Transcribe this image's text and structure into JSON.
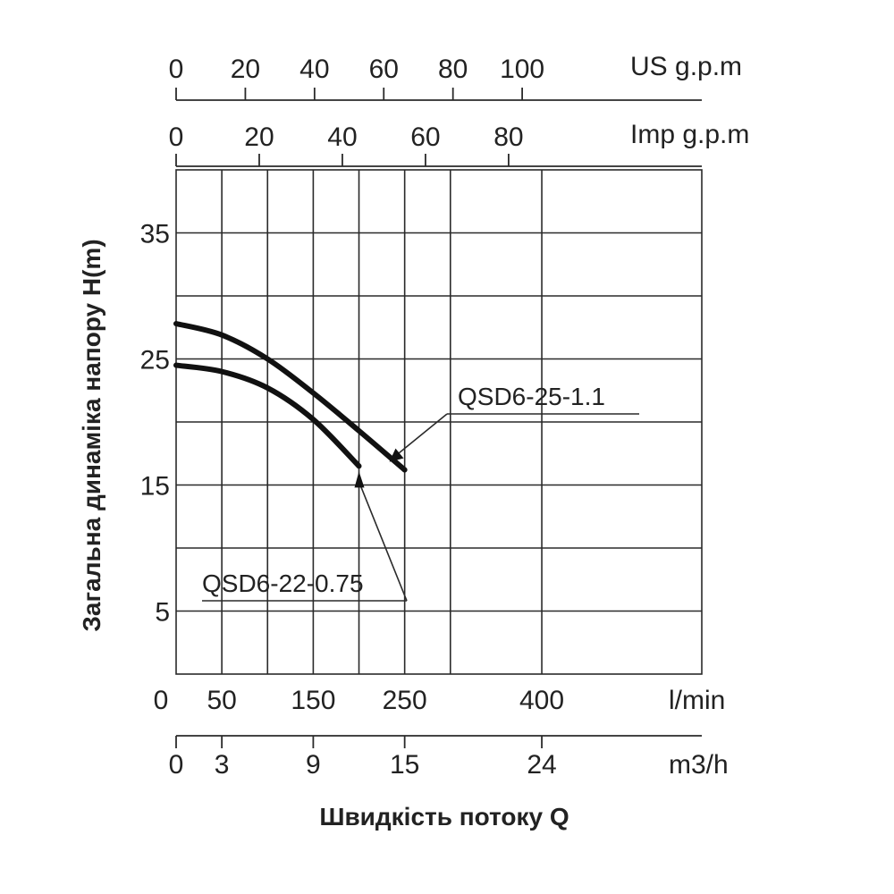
{
  "chart_data": {
    "type": "line",
    "ylabel": "Загальна динаміка напору H(m)",
    "xlabel": "Швидкість потоку Q",
    "y_ticks": [
      "5",
      "15",
      "25",
      "35"
    ],
    "ylim": [
      0,
      40
    ],
    "xlim_m3h": [
      0,
      34.5
    ],
    "x_axes": {
      "us_gpm": {
        "unit": "US g.p.m",
        "ticks": [
          "0",
          "20",
          "40",
          "60",
          "80",
          "100"
        ],
        "tick_values": [
          0,
          20,
          40,
          60,
          80,
          100
        ]
      },
      "imp_gpm": {
        "unit": "Imp g.p.m",
        "ticks": [
          "0",
          "20",
          "40",
          "60",
          "80"
        ],
        "tick_values": [
          0,
          20,
          40,
          60,
          80
        ]
      },
      "l_min": {
        "unit": "l/min",
        "ticks": [
          "0",
          "50",
          "150",
          "250",
          "400"
        ],
        "tick_values": [
          0,
          50,
          150,
          250,
          400
        ]
      },
      "m3h": {
        "unit": "m3/h",
        "ticks": [
          "0",
          "3",
          "9",
          "15",
          "24"
        ],
        "tick_values": [
          0,
          3,
          9,
          15,
          24
        ]
      }
    },
    "grid": true,
    "series": [
      {
        "name": "QSD6-25-1.1",
        "x_m3h": [
          0,
          3,
          6,
          9,
          12,
          15
        ],
        "y_m": [
          27.8,
          26.9,
          25.0,
          22.3,
          19.3,
          16.2
        ],
        "label_anchor_m3h": 13.7
      },
      {
        "name": "QSD6-22-0.75",
        "x_m3h": [
          0,
          3,
          6,
          9,
          12
        ],
        "y_m": [
          24.5,
          24.0,
          22.7,
          20.2,
          16.5
        ],
        "label_anchor_m3h": 12
      }
    ]
  }
}
